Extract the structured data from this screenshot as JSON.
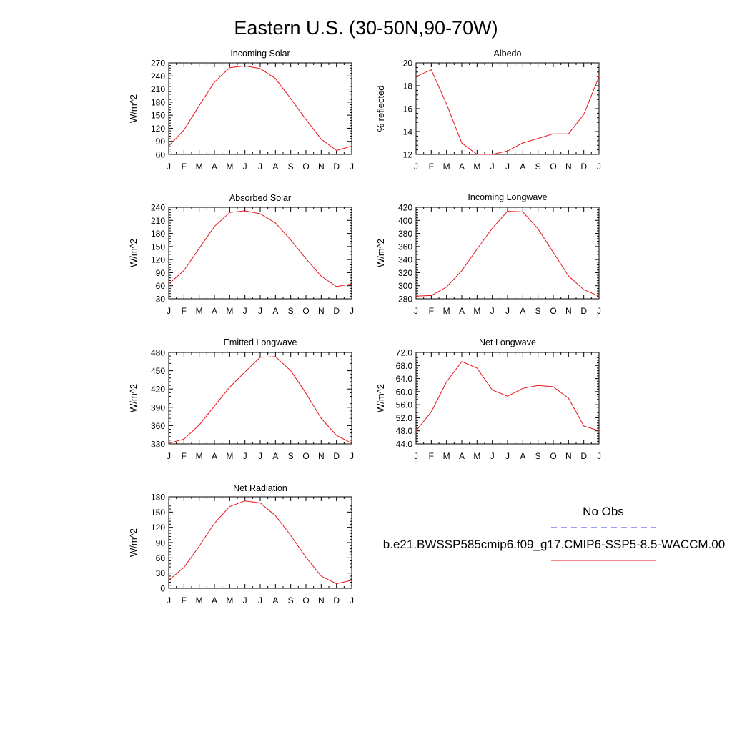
{
  "title": "Eastern U.S. (30-50N,90-70W)",
  "months": [
    "J",
    "F",
    "M",
    "A",
    "M",
    "J",
    "J",
    "A",
    "S",
    "O",
    "N",
    "D",
    "J"
  ],
  "colors": {
    "model_line": "#e8141a",
    "obs_line": "#3a3aff",
    "axis": "#000000"
  },
  "legend": {
    "obs_label": "No Obs",
    "model_label": "b.e21.BWSSP585cmip6.f09_g17.CMIP6-SSP5-8.5-WACCM.00"
  },
  "chart_data": [
    {
      "type": "line",
      "title": "Incoming Solar",
      "ylabel": "W/m^2",
      "ylim": [
        60,
        270
      ],
      "yticks": [
        "60",
        "90",
        "120",
        "150",
        "180",
        "210",
        "240",
        "270"
      ],
      "ytick_values": [
        60,
        90,
        120,
        150,
        180,
        210,
        240,
        270
      ],
      "values": [
        79,
        116,
        172,
        226,
        259,
        263,
        257,
        234,
        188,
        140,
        95,
        69,
        79
      ]
    },
    {
      "type": "line",
      "title": "Albedo",
      "ylabel": "% reflected",
      "ylim": [
        12,
        20
      ],
      "yticks": [
        "12",
        "14",
        "16",
        "18",
        "20"
      ],
      "ytick_values": [
        12,
        14,
        16,
        18,
        20
      ],
      "values": [
        18.8,
        19.4,
        16.4,
        13.0,
        12.0,
        12.0,
        12.3,
        13.0,
        13.4,
        13.8,
        13.8,
        15.5,
        18.8
      ]
    },
    {
      "type": "line",
      "title": "Absorbed Solar",
      "ylabel": "W/m^2",
      "ylim": [
        30,
        240
      ],
      "yticks": [
        "30",
        "60",
        "90",
        "120",
        "150",
        "180",
        "210",
        "240"
      ],
      "ytick_values": [
        30,
        60,
        90,
        120,
        150,
        180,
        210,
        240
      ],
      "values": [
        64,
        95,
        146,
        196,
        228,
        232,
        225,
        204,
        165,
        122,
        82,
        58,
        64
      ]
    },
    {
      "type": "line",
      "title": "Incoming Longwave",
      "ylabel": "W/m^2",
      "ylim": [
        280,
        420
      ],
      "yticks": [
        "280",
        "300",
        "320",
        "340",
        "360",
        "380",
        "400",
        "420"
      ],
      "ytick_values": [
        280,
        300,
        320,
        340,
        360,
        380,
        400,
        420
      ],
      "values": [
        284,
        285,
        298,
        323,
        356,
        388,
        414,
        413,
        387,
        351,
        315,
        294,
        284
      ]
    },
    {
      "type": "line",
      "title": "Emitted Longwave",
      "ylabel": "W/m^2",
      "ylim": [
        330,
        480
      ],
      "yticks": [
        "330",
        "360",
        "390",
        "420",
        "450",
        "480"
      ],
      "ytick_values": [
        330,
        360,
        390,
        420,
        450,
        480
      ],
      "values": [
        331,
        338,
        361,
        392,
        423,
        448,
        472,
        473,
        450,
        413,
        372,
        344,
        331
      ]
    },
    {
      "type": "line",
      "title": "Net Longwave",
      "ylabel": "W/m^2",
      "ylim": [
        44,
        72
      ],
      "yticks": [
        "44.0",
        "48.0",
        "52.0",
        "56.0",
        "60.0",
        "64.0",
        "68.0",
        "72.0"
      ],
      "ytick_values": [
        44,
        48,
        52,
        56,
        60,
        64,
        68,
        72
      ],
      "values": [
        48.0,
        53.8,
        63.0,
        69.2,
        67.2,
        60.5,
        58.6,
        61.0,
        61.9,
        61.5,
        58.0,
        49.5,
        48.0
      ]
    },
    {
      "type": "line",
      "title": "Net Radiation",
      "ylabel": "W/m^2",
      "ylim": [
        0,
        180
      ],
      "yticks": [
        "0",
        "30",
        "60",
        "90",
        "120",
        "150",
        "180"
      ],
      "ytick_values": [
        0,
        30,
        60,
        90,
        120,
        150,
        180
      ],
      "values": [
        16,
        41,
        83,
        128,
        161,
        172,
        168,
        143,
        104,
        61,
        24,
        9,
        16
      ]
    }
  ]
}
